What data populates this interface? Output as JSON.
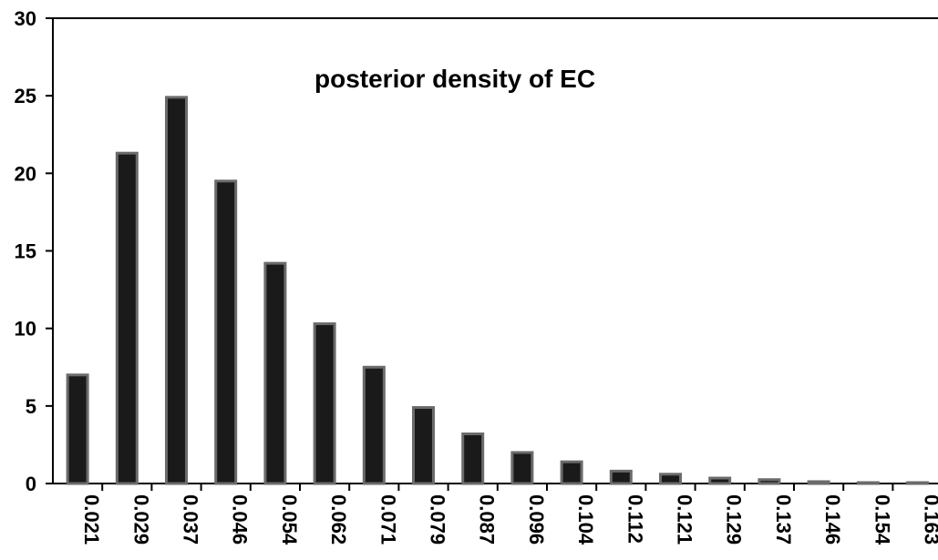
{
  "chart_data": {
    "type": "bar",
    "title": "posterior density of EC",
    "xlabel": "",
    "ylabel": "",
    "categories": [
      "0.021",
      "0.029",
      "0.037",
      "0.046",
      "0.054",
      "0.062",
      "0.071",
      "0.079",
      "0.087",
      "0.096",
      "0.104",
      "0.112",
      "0.121",
      "0.129",
      "0.137",
      "0.146",
      "0.154",
      "0.163"
    ],
    "values": [
      7.0,
      21.3,
      24.9,
      19.5,
      14.2,
      10.3,
      7.5,
      4.9,
      3.2,
      2.0,
      1.4,
      0.8,
      0.6,
      0.35,
      0.25,
      0.12,
      0.05,
      0.05
    ],
    "ylim": [
      0,
      30
    ],
    "yticks": [
      0,
      5,
      10,
      15,
      20,
      25,
      30
    ],
    "grid": false,
    "legend": "none",
    "colors": {
      "bar_fill": "#1a1a1a",
      "bar_stroke": "#6b6b6b",
      "axis": "#000000"
    }
  }
}
